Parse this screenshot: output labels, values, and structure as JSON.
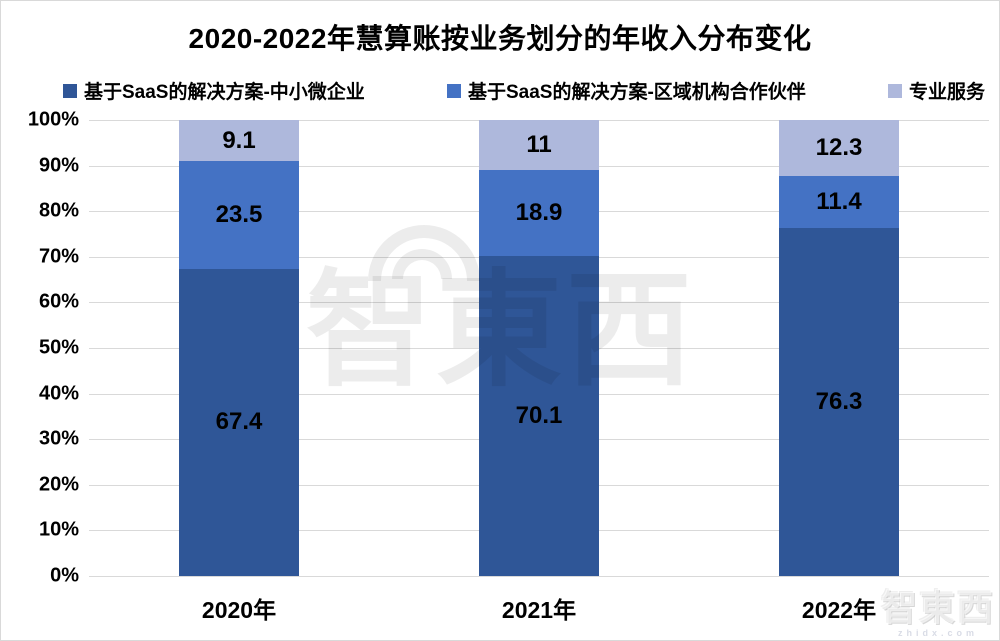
{
  "title": "2020-2022年慧算账按业务划分的年收入分布变化",
  "legend": {
    "items": [
      {
        "label": "基于SaaS的解决方案-中小微企业",
        "color": "#2F5697"
      },
      {
        "label": "基于SaaS的解决方案-区域机构合作伙伴",
        "color": "#4472C4"
      },
      {
        "label": "专业服务",
        "color": "#AEB8DC"
      }
    ]
  },
  "watermark": {
    "center_text": "智東西",
    "corner_text": "智東西",
    "corner_sub": "zhidx.com"
  },
  "chart_data": {
    "type": "bar",
    "stacked": true,
    "percent": true,
    "title": "2020-2022年慧算账按业务划分的年收入分布变化",
    "categories": [
      "2020年",
      "2021年",
      "2022年"
    ],
    "series": [
      {
        "name": "基于SaaS的解决方案-中小微企业",
        "color": "#2F5697",
        "values": [
          67.4,
          70.1,
          76.3
        ]
      },
      {
        "name": "基于SaaS的解决方案-区域机构合作伙伴",
        "color": "#4472C4",
        "values": [
          23.5,
          18.9,
          11.4
        ]
      },
      {
        "name": "专业服务",
        "color": "#AEB8DC",
        "values": [
          9.1,
          11,
          12.3
        ]
      }
    ],
    "xlabel": "",
    "ylabel": "",
    "ylim": [
      0,
      100
    ],
    "ytick_step": 10,
    "ytick_suffix": "%",
    "grid": true,
    "legend_position": "top"
  }
}
